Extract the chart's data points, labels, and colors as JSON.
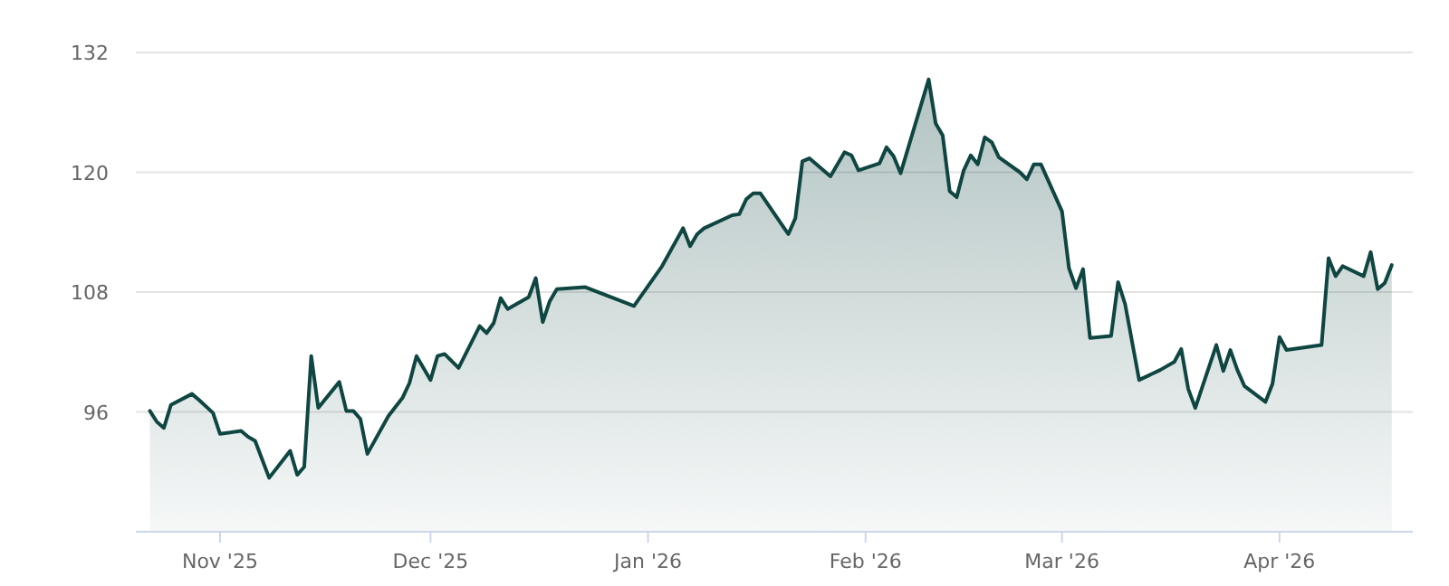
{
  "chart_data": {
    "type": "area",
    "xlim": [
      "2025-10-20",
      "2026-04-20"
    ],
    "ylim": [
      84,
      132
    ],
    "yticks": [
      96,
      108,
      120,
      132
    ],
    "xticks": [
      {
        "value": "2025-11-01",
        "label": "Nov '25"
      },
      {
        "value": "2025-12-01",
        "label": "Dec '25"
      },
      {
        "value": "2026-01-01",
        "label": "Jan '26"
      },
      {
        "value": "2026-02-01",
        "label": "Feb '26"
      },
      {
        "value": "2026-03-01",
        "label": "Mar '26"
      },
      {
        "value": "2026-04-01",
        "label": "Apr '26"
      }
    ],
    "grid": "y",
    "x": [
      "2025-10-22",
      "2025-10-23",
      "2025-10-24",
      "2025-10-25",
      "2025-10-28",
      "2025-10-29",
      "2025-10-31",
      "2025-11-01",
      "2025-11-04",
      "2025-11-05",
      "2025-11-06",
      "2025-11-08",
      "2025-11-11",
      "2025-11-12",
      "2025-11-13",
      "2025-11-14",
      "2025-11-15",
      "2025-11-18",
      "2025-11-19",
      "2025-11-20",
      "2025-11-21",
      "2025-11-22",
      "2025-11-25",
      "2025-11-27",
      "2025-11-28",
      "2025-11-29",
      "2025-12-01",
      "2025-12-02",
      "2025-12-03",
      "2025-12-05",
      "2025-12-08",
      "2025-12-09",
      "2025-12-10",
      "2025-12-11",
      "2025-12-12",
      "2025-12-15",
      "2025-12-16",
      "2025-12-17",
      "2025-12-18",
      "2025-12-19",
      "2025-12-23",
      "2025-12-30",
      "2026-01-03",
      "2026-01-06",
      "2026-01-07",
      "2026-01-08",
      "2026-01-09",
      "2026-01-13",
      "2026-01-14",
      "2026-01-15",
      "2026-01-16",
      "2026-01-17",
      "2026-01-21",
      "2026-01-22",
      "2026-01-23",
      "2026-01-24",
      "2026-01-27",
      "2026-01-29",
      "2026-01-30",
      "2026-01-31",
      "2026-02-03",
      "2026-02-04",
      "2026-02-05",
      "2026-02-06",
      "2026-02-10",
      "2026-02-11",
      "2026-02-12",
      "2026-02-13",
      "2026-02-14",
      "2026-02-15",
      "2026-02-16",
      "2026-02-17",
      "2026-02-18",
      "2026-02-19",
      "2026-02-20",
      "2026-02-23",
      "2026-02-24",
      "2026-02-25",
      "2026-02-26",
      "2026-03-01",
      "2026-03-02",
      "2026-03-03",
      "2026-03-04",
      "2026-03-05",
      "2026-03-08",
      "2026-03-09",
      "2026-03-10",
      "2026-03-12",
      "2026-03-15",
      "2026-03-17",
      "2026-03-18",
      "2026-03-19",
      "2026-03-20",
      "2026-03-23",
      "2026-03-24",
      "2026-03-25",
      "2026-03-26",
      "2026-03-27",
      "2026-03-30",
      "2026-03-31",
      "2026-04-01",
      "2026-04-02",
      "2026-04-07",
      "2026-04-08",
      "2026-04-09",
      "2026-04-10",
      "2026-04-13",
      "2026-04-14",
      "2026-04-15",
      "2026-04-16",
      "2026-04-17"
    ],
    "series": [
      {
        "color": "#0f4641",
        "values": [
          96.1,
          95.0,
          94.4,
          96.7,
          97.8,
          97.2,
          95.9,
          93.8,
          94.1,
          93.5,
          93.1,
          89.4,
          92.1,
          89.7,
          90.5,
          101.6,
          96.4,
          99.0,
          96.1,
          96.1,
          95.3,
          91.8,
          95.6,
          97.4,
          98.9,
          101.6,
          99.2,
          101.6,
          101.8,
          100.4,
          104.6,
          103.9,
          104.9,
          107.4,
          106.3,
          107.5,
          109.4,
          105.0,
          107.1,
          108.3,
          108.5,
          106.6,
          110.6,
          114.4,
          112.6,
          113.8,
          114.4,
          115.7,
          115.8,
          117.3,
          117.9,
          117.9,
          113.8,
          115.4,
          121.1,
          121.4,
          119.6,
          122.0,
          121.7,
          120.2,
          120.9,
          122.5,
          121.6,
          119.9,
          129.3,
          124.9,
          123.7,
          118.1,
          117.5,
          120.2,
          121.7,
          120.8,
          123.5,
          123.0,
          121.5,
          120.0,
          119.3,
          120.8,
          120.8,
          116.1,
          110.4,
          108.4,
          110.3,
          103.4,
          103.6,
          109.0,
          106.8,
          99.2,
          100.2,
          101.0,
          102.3,
          98.3,
          96.4,
          102.7,
          100.1,
          102.2,
          100.2,
          98.6,
          97.0,
          98.8,
          103.5,
          102.2,
          102.7,
          111.4,
          109.6,
          110.6,
          109.6,
          112.0,
          108.3,
          108.9,
          110.7
        ]
      }
    ]
  }
}
